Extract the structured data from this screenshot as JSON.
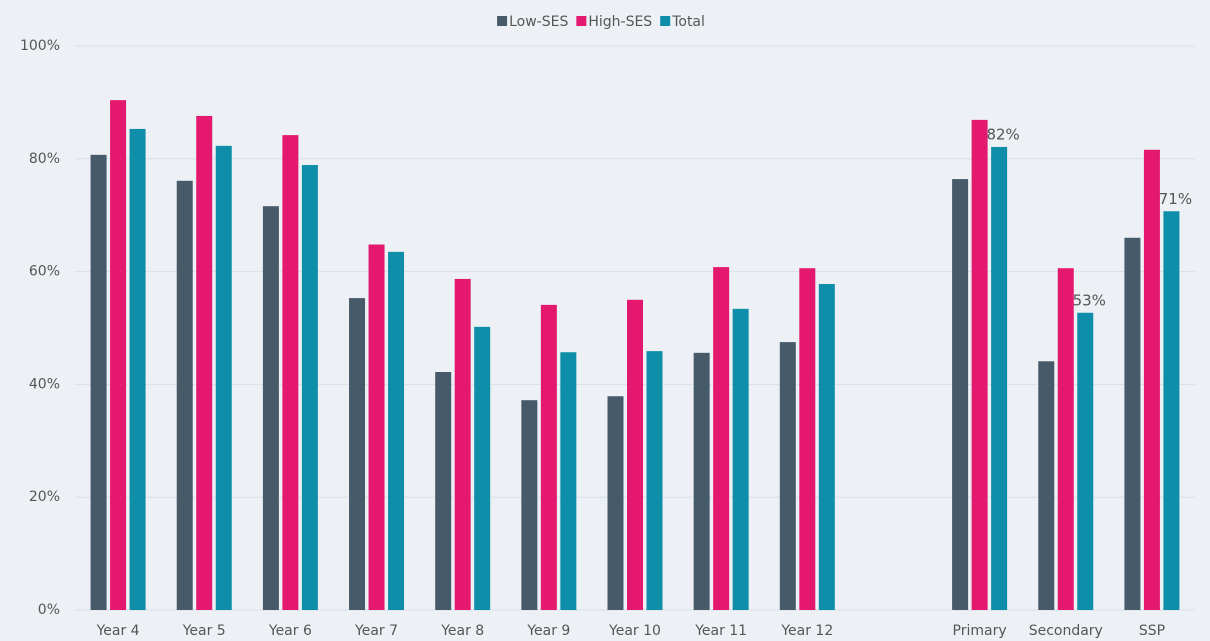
{
  "chart_data": {
    "type": "bar",
    "categories": [
      "Year 4",
      "Year 5",
      "Year 6",
      "Year 7",
      "Year 8",
      "Year 9",
      "Year 10",
      "Year 11",
      "Year 12",
      null,
      "Primary",
      "Secondary",
      "SSP"
    ],
    "series": [
      {
        "name": "Low-SES",
        "color": "#465a6a",
        "values": [
          80.7,
          76.1,
          71.6,
          55.3,
          42.2,
          37.2,
          37.9,
          45.6,
          47.5,
          null,
          76.4,
          44.1,
          66.0
        ]
      },
      {
        "name": "High-SES",
        "color": "#e4186e",
        "values": [
          90.4,
          87.6,
          84.2,
          64.8,
          58.7,
          54.1,
          55.0,
          60.8,
          60.6,
          null,
          86.9,
          60.6,
          81.6
        ]
      },
      {
        "name": "Total",
        "color": "#0e8ea8",
        "values": [
          85.3,
          82.3,
          78.9,
          63.5,
          50.2,
          45.7,
          45.9,
          53.4,
          57.8,
          null,
          82.1,
          52.7,
          70.7
        ],
        "value_labels": [
          null,
          null,
          null,
          null,
          null,
          null,
          null,
          null,
          null,
          null,
          "82%",
          "53%",
          "71%"
        ]
      }
    ],
    "ylim": [
      0,
      100
    ],
    "yticks": [
      {
        "value": 0,
        "label": "0%"
      },
      {
        "value": 20,
        "label": "20%"
      },
      {
        "value": 40,
        "label": "40%"
      },
      {
        "value": 60,
        "label": "60%"
      },
      {
        "value": 80,
        "label": "80%"
      },
      {
        "value": 100,
        "label": "100%"
      }
    ],
    "grid": true,
    "legend": "top"
  }
}
